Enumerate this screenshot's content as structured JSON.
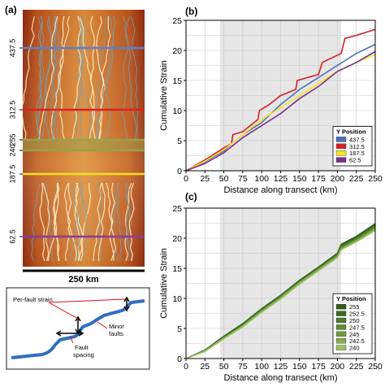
{
  "panels": {
    "a": {
      "label": "(a)",
      "y_ticks": [
        "437.5",
        "312.5",
        "255",
        "240",
        "187.5",
        "62.5"
      ],
      "scale_bar": "250 km",
      "line_colors": [
        "#5b7fc7",
        "#e02020",
        "#9aa04a",
        "#f0e020",
        "#8a3aa0"
      ],
      "inset": {
        "label_per_fault": "Per-fault strain",
        "label_minor": "Minor\nfaults",
        "label_spacing": "Fault\nspacing"
      }
    },
    "b": {
      "label": "(b)"
    },
    "c": {
      "label": "(c)"
    }
  },
  "chart_data": [
    {
      "type": "line",
      "panel": "(b)",
      "title": "",
      "xlabel": "Distance along transect (km)",
      "ylabel": "Cumulative Strain",
      "xlim": [
        0,
        250
      ],
      "ylim": [
        0,
        25
      ],
      "xticks": [
        0,
        25,
        50,
        75,
        100,
        125,
        150,
        175,
        200,
        225,
        250
      ],
      "yticks": [
        0,
        5,
        10,
        15,
        20,
        25
      ],
      "shaded_x": [
        45,
        205
      ],
      "grid": true,
      "legend_title": "Y Position",
      "legend_position": "lower-right",
      "series": [
        {
          "name": "437.5",
          "color": "#4a72b8",
          "x": [
            0,
            25,
            50,
            60,
            75,
            100,
            125,
            150,
            175,
            200,
            225,
            250
          ],
          "y": [
            0,
            1.5,
            3.3,
            4.5,
            6,
            8,
            11,
            13.5,
            15.5,
            17.5,
            19.5,
            21
          ]
        },
        {
          "name": "312.5",
          "color": "#d41f26",
          "x": [
            0,
            25,
            50,
            60,
            62,
            75,
            95,
            97,
            110,
            125,
            145,
            147,
            175,
            180,
            205,
            210,
            225,
            250
          ],
          "y": [
            0,
            1.8,
            3.8,
            4.5,
            6,
            6.5,
            8.5,
            10,
            11,
            12.5,
            13.5,
            15,
            16,
            18,
            19.5,
            22,
            22.5,
            23.5
          ]
        },
        {
          "name": "187.5",
          "color": "#f5e61e",
          "x": [
            0,
            25,
            50,
            75,
            100,
            125,
            150,
            175,
            200,
            225,
            250
          ],
          "y": [
            0,
            1.6,
            3.5,
            6,
            8.5,
            10.5,
            12.5,
            14.5,
            16.5,
            18,
            19.3
          ]
        },
        {
          "name": "62.5",
          "color": "#7a2e8c",
          "x": [
            0,
            25,
            50,
            75,
            100,
            125,
            150,
            175,
            200,
            225,
            250
          ],
          "y": [
            0,
            1.2,
            3,
            5.5,
            7.5,
            9.5,
            12,
            14,
            16.5,
            18,
            19.8
          ]
        }
      ]
    },
    {
      "type": "line",
      "panel": "(c)",
      "title": "",
      "xlabel": "Distance along transect (km)",
      "ylabel": "Cumulative Strain",
      "xlim": [
        0,
        250
      ],
      "ylim": [
        0,
        25
      ],
      "xticks": [
        0,
        25,
        50,
        75,
        100,
        125,
        150,
        175,
        200,
        225,
        250
      ],
      "yticks": [
        0,
        5,
        10,
        15,
        20,
        25
      ],
      "shaded_x": [
        45,
        205
      ],
      "grid": true,
      "legend_title": "Y Position",
      "legend_position": "lower-right",
      "series": [
        {
          "name": "255",
          "color": "#2f5a1e",
          "x": [
            0,
            25,
            50,
            75,
            100,
            125,
            150,
            175,
            200,
            205,
            225,
            250
          ],
          "y": [
            0,
            1.4,
            3.7,
            5.8,
            8.3,
            10.5,
            13,
            15.2,
            17.5,
            19,
            20.3,
            22.4
          ]
        },
        {
          "name": "252.5",
          "color": "#3a6b24",
          "x": [
            0,
            25,
            50,
            75,
            100,
            125,
            150,
            175,
            200,
            205,
            225,
            250
          ],
          "y": [
            0,
            1.35,
            3.6,
            5.7,
            8.2,
            10.4,
            12.9,
            15.1,
            17.4,
            18.8,
            20.1,
            22.2
          ]
        },
        {
          "name": "250",
          "color": "#4b7c2c",
          "x": [
            0,
            25,
            50,
            75,
            100,
            125,
            150,
            175,
            200,
            205,
            225,
            250
          ],
          "y": [
            0,
            1.3,
            3.5,
            5.6,
            8.1,
            10.3,
            12.8,
            15,
            17.2,
            18.6,
            19.9,
            22
          ]
        },
        {
          "name": "247.5",
          "color": "#5d8d34",
          "x": [
            0,
            25,
            50,
            75,
            100,
            125,
            150,
            175,
            200,
            205,
            225,
            250
          ],
          "y": [
            0,
            1.3,
            3.45,
            5.5,
            8,
            10.2,
            12.7,
            14.9,
            17.1,
            18.4,
            19.8,
            21.8
          ]
        },
        {
          "name": "245",
          "color": "#6e9c3e",
          "x": [
            0,
            25,
            50,
            75,
            100,
            125,
            150,
            175,
            200,
            205,
            225,
            250
          ],
          "y": [
            0,
            1.25,
            3.4,
            5.4,
            7.9,
            10.1,
            12.6,
            14.8,
            17,
            18.3,
            19.6,
            21.6
          ]
        },
        {
          "name": "242.5",
          "color": "#84ad4e",
          "x": [
            0,
            25,
            50,
            75,
            100,
            125,
            150,
            175,
            200,
            205,
            225,
            250
          ],
          "y": [
            0,
            1.2,
            3.35,
            5.35,
            7.8,
            10,
            12.5,
            14.7,
            16.9,
            18.2,
            19.5,
            21.5
          ]
        },
        {
          "name": "240",
          "color": "#9cc062",
          "x": [
            0,
            25,
            50,
            75,
            100,
            125,
            150,
            175,
            200,
            205,
            225,
            250
          ],
          "y": [
            0,
            1.2,
            3.3,
            5.3,
            7.7,
            9.9,
            12.4,
            14.6,
            16.8,
            18.1,
            19.4,
            21.3
          ]
        }
      ]
    }
  ]
}
